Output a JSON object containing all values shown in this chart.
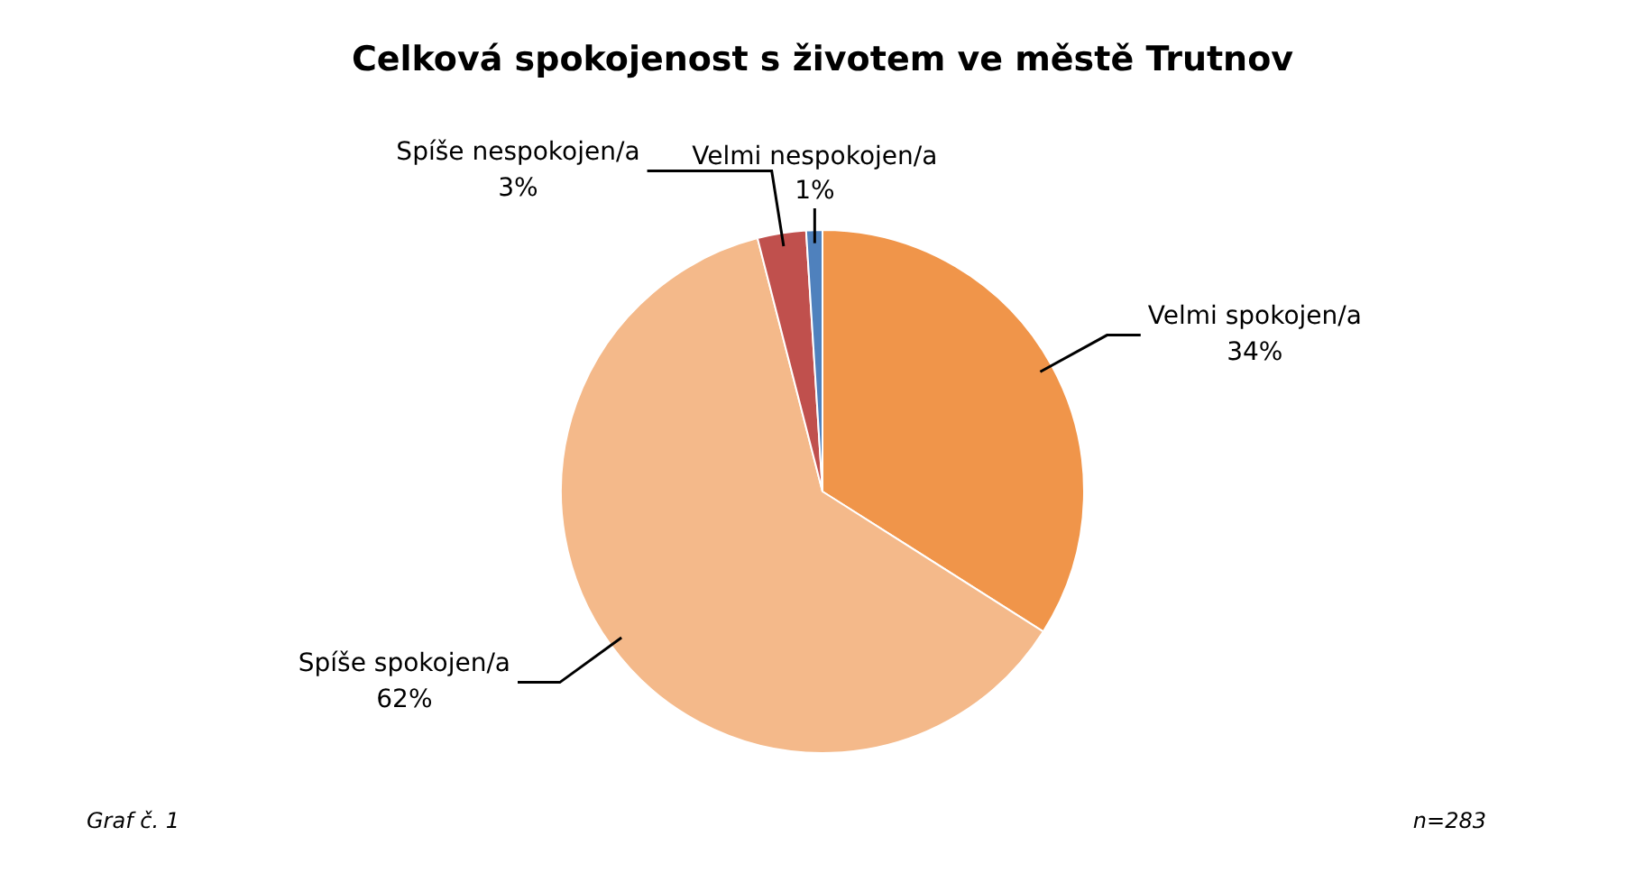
{
  "chart_data": {
    "type": "pie",
    "title": "Celková spokojenost s životem ve městě Trutnov",
    "categories": [
      "Velmi spokojen/a",
      "Spíše spokojen/a",
      "Spíše nespokojen/a",
      "Velmi nespokojen/a"
    ],
    "values": [
      34,
      62,
      3,
      1
    ],
    "value_labels": [
      "34%",
      "62%",
      "3%",
      "1%"
    ],
    "colors": [
      "#f0954a",
      "#f4b98a",
      "#c0504d",
      "#4f81bd"
    ],
    "legend": false,
    "annotations": [
      "Graf č. 1",
      "n=283"
    ]
  }
}
